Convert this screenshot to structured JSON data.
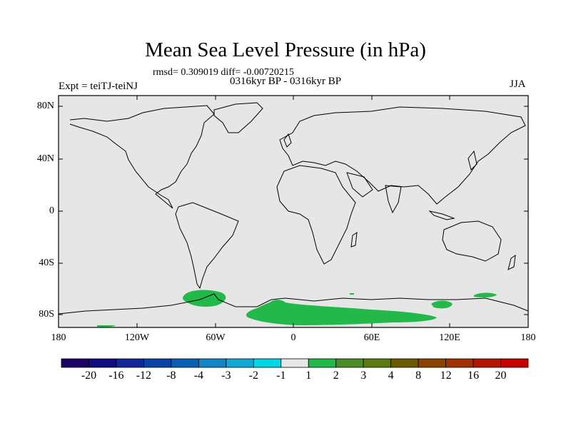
{
  "title": "Mean Sea Level Pressure (in hPa)",
  "stats": "rmsd= 0.309019 diff= -0.00720215",
  "period": "0316kyr BP - 0316kyr BP",
  "experiment": "Expt = teiTJ-teiNJ",
  "season": "JJA",
  "lat_labels": [
    "80N",
    "40N",
    "0",
    "40S",
    "80S"
  ],
  "lon_labels": [
    "180",
    "120W",
    "60W",
    "0",
    "60E",
    "120E",
    "180"
  ],
  "colors": {
    "background_field": "#e6e6e6",
    "positive_anomaly": "#22b84a",
    "coast": "#000000"
  },
  "colorbar": {
    "labels": [
      "-20",
      "-16",
      "-12",
      "-8",
      "-4",
      "-3",
      "-2",
      "-1",
      "1",
      "2",
      "3",
      "4",
      "8",
      "12",
      "16",
      "20"
    ],
    "colors": [
      "#1d0066",
      "#0d0c80",
      "#112699",
      "#0a42a8",
      "#0860b5",
      "#1286c8",
      "#10a8d6",
      "#00d8e8",
      "#e8e8e8",
      "#22b84a",
      "#4b8c26",
      "#5c7a10",
      "#6b5a00",
      "#8a4400",
      "#a13100",
      "#b21600",
      "#c80000"
    ]
  }
}
